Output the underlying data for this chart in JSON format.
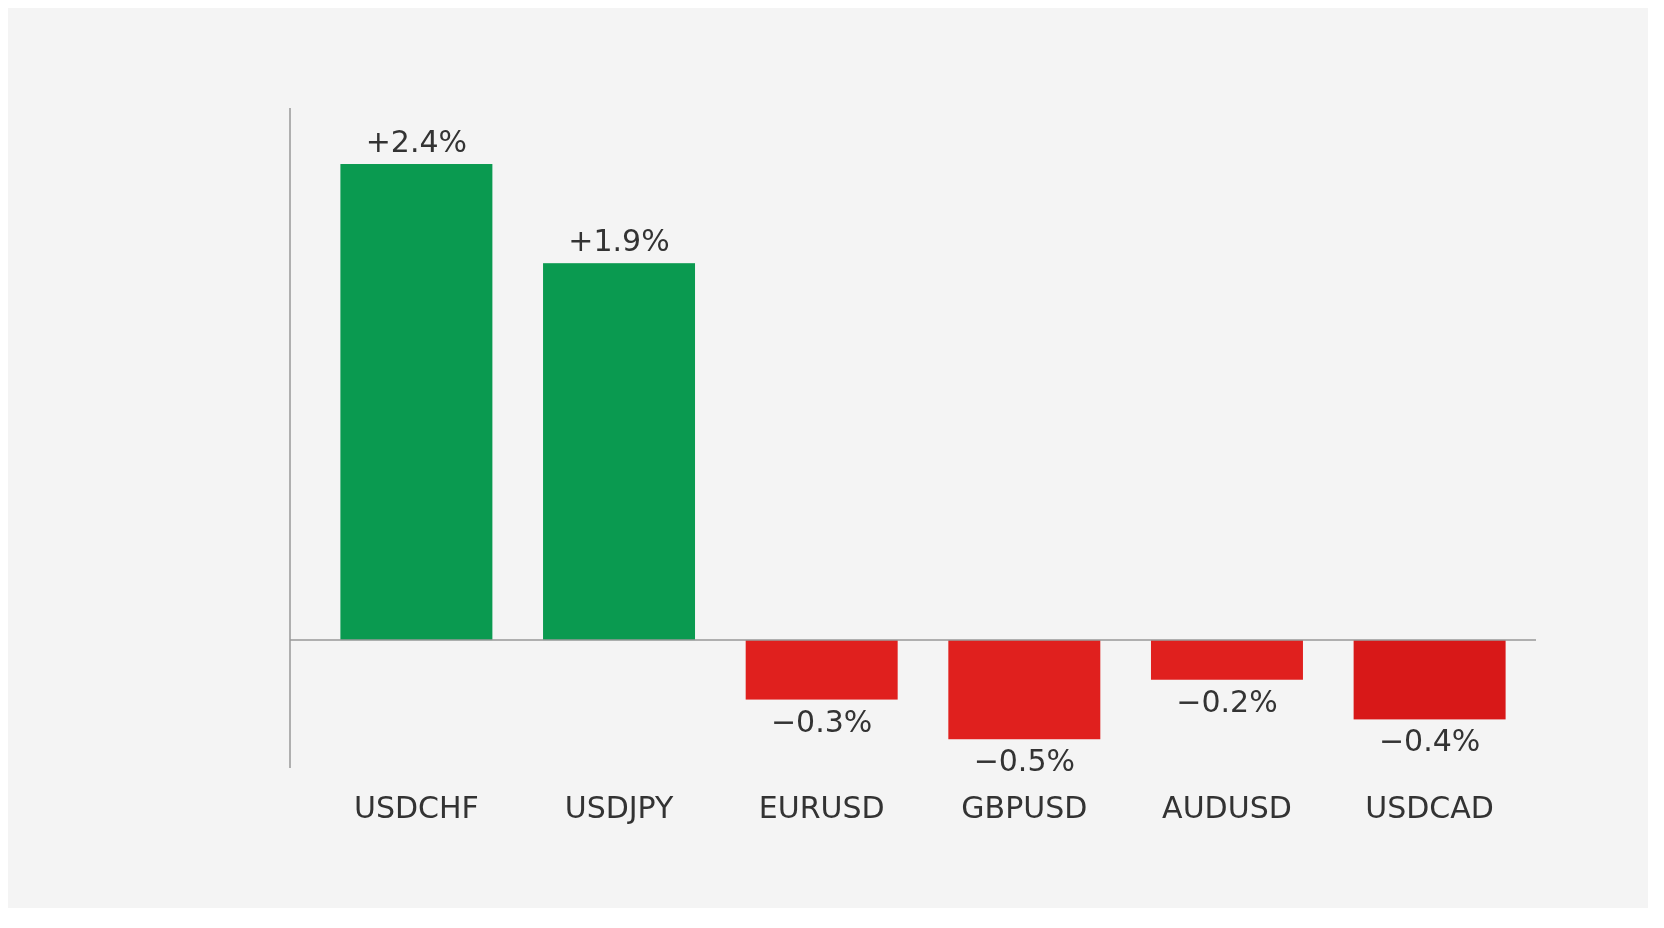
{
  "chart_data": {
    "type": "bar",
    "categories": [
      "USDCHF",
      "USDJPY",
      "EURUSD",
      "GBPUSD",
      "AUDUSD",
      "USDCAD"
    ],
    "values": [
      2.4,
      1.9,
      -0.3,
      -0.5,
      -0.2,
      -0.4
    ],
    "colors": [
      "#0a9a50",
      "#0a9a50",
      "#e0201e",
      "#e0201e",
      "#e0201e",
      "#d81818"
    ],
    "value_labels": [
      "+2.4%",
      "+1.9%",
      "−0.3%",
      "−0.5%",
      "−0.2%",
      "−0.4%"
    ]
  }
}
